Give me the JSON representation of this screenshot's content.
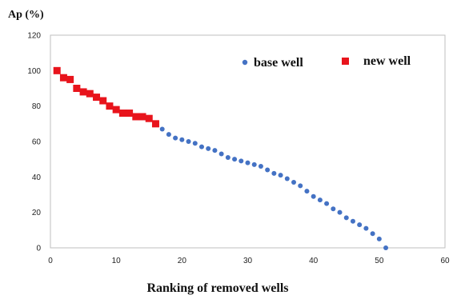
{
  "chart_data": {
    "type": "scatter",
    "ylabel": "Ap (%)",
    "xlabel": "Ranking of removed wells",
    "xlim": [
      0,
      60
    ],
    "ylim": [
      0,
      120
    ],
    "xticks": [
      0,
      10,
      20,
      30,
      40,
      50,
      60
    ],
    "yticks": [
      0,
      20,
      40,
      60,
      80,
      100,
      120
    ],
    "grid": false,
    "legend_position": "top-right",
    "series": [
      {
        "name": "new well",
        "marker": "square",
        "color": "#e8141c",
        "points": [
          [
            1,
            100
          ],
          [
            2,
            96
          ],
          [
            3,
            95
          ],
          [
            4,
            90
          ],
          [
            5,
            88
          ],
          [
            6,
            87
          ],
          [
            7,
            85
          ],
          [
            8,
            83
          ],
          [
            9,
            80
          ],
          [
            10,
            78
          ],
          [
            11,
            76
          ],
          [
            12,
            76
          ],
          [
            13,
            74
          ],
          [
            14,
            74
          ],
          [
            15,
            73
          ],
          [
            16,
            70
          ]
        ]
      },
      {
        "name": "base well",
        "marker": "circle",
        "color": "#4472c4",
        "points": [
          [
            17,
            67
          ],
          [
            18,
            64
          ],
          [
            19,
            62
          ],
          [
            20,
            61
          ],
          [
            21,
            60
          ],
          [
            22,
            59
          ],
          [
            23,
            57
          ],
          [
            24,
            56
          ],
          [
            25,
            55
          ],
          [
            26,
            53
          ],
          [
            27,
            51
          ],
          [
            28,
            50
          ],
          [
            29,
            49
          ],
          [
            30,
            48
          ],
          [
            31,
            47
          ],
          [
            32,
            46
          ],
          [
            33,
            44
          ],
          [
            34,
            42
          ],
          [
            35,
            41
          ],
          [
            36,
            39
          ],
          [
            37,
            37
          ],
          [
            38,
            35
          ],
          [
            39,
            32
          ],
          [
            40,
            29
          ],
          [
            41,
            27
          ],
          [
            42,
            25
          ],
          [
            43,
            22
          ],
          [
            44,
            20
          ],
          [
            45,
            17
          ],
          [
            46,
            15
          ],
          [
            47,
            13
          ],
          [
            48,
            11
          ],
          [
            49,
            8
          ],
          [
            50,
            5
          ],
          [
            51,
            0
          ]
        ]
      }
    ]
  }
}
